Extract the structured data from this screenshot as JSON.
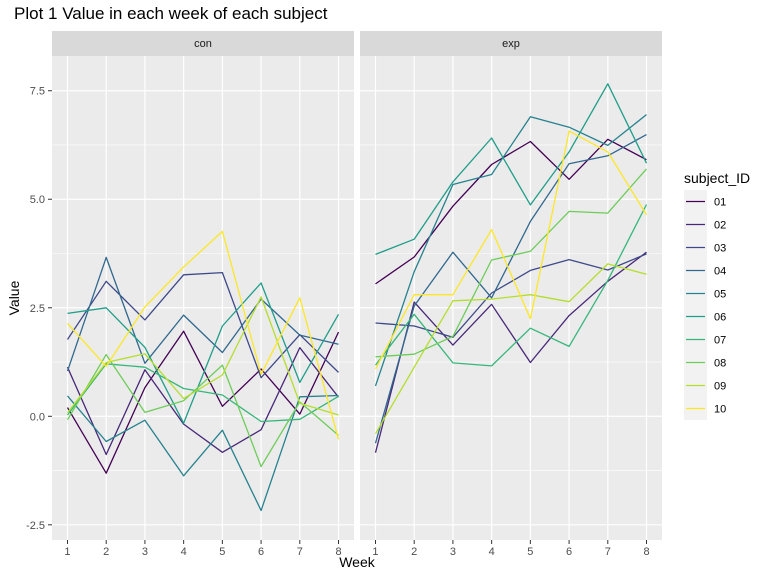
{
  "chart_data": {
    "type": "line",
    "title": "Plot 1 Value in each week of each subject",
    "xlabel": "Week",
    "ylabel": "Value",
    "x": [
      1,
      2,
      3,
      4,
      5,
      6,
      7,
      8
    ],
    "x_tick_labels": [
      "1",
      "2",
      "3",
      "4",
      "5",
      "6",
      "7",
      "8"
    ],
    "y_ticks": [
      -2.5,
      0.0,
      2.5,
      5.0,
      7.5
    ],
    "y_tick_labels": [
      "-2.5",
      "0.0",
      "2.5",
      "5.0",
      "7.5"
    ],
    "ylim": [
      -2.85,
      8.3
    ],
    "xlim": [
      0.6,
      8.4
    ],
    "grid": true,
    "legend_placement": "right",
    "legend_title": "subject_ID",
    "series_colors": {
      "01": "#440154",
      "02": "#482878",
      "03": "#3e4989",
      "04": "#31688e",
      "05": "#26828e",
      "06": "#1f9e89",
      "07": "#35b779",
      "08": "#6dcd59",
      "09": "#b4de2c",
      "10": "#fde725"
    },
    "panels": [
      {
        "label": "con",
        "series": [
          {
            "name": "01",
            "values": [
              0.2,
              -1.31,
              0.66,
              1.96,
              0.23,
              1.09,
              0.05,
              1.94
            ]
          },
          {
            "name": "02",
            "values": [
              1.13,
              -0.88,
              1.07,
              -0.18,
              -0.83,
              -0.31,
              1.58,
              0.44
            ]
          },
          {
            "name": "03",
            "values": [
              1.77,
              3.11,
              2.22,
              3.26,
              3.31,
              0.89,
              1.88,
              1.01
            ]
          },
          {
            "name": "04",
            "values": [
              1.04,
              3.66,
              1.22,
              2.33,
              1.47,
              2.7,
              1.87,
              1.66
            ]
          },
          {
            "name": "05",
            "values": [
              0.47,
              -0.58,
              -0.09,
              -1.37,
              -0.32,
              -2.17,
              0.45,
              0.48
            ]
          },
          {
            "name": "06",
            "values": [
              2.37,
              2.5,
              1.59,
              -0.16,
              2.08,
              3.07,
              0.78,
              2.35
            ]
          },
          {
            "name": "07",
            "values": [
              0.03,
              1.21,
              1.13,
              0.64,
              0.49,
              -0.12,
              -0.07,
              0.46
            ]
          },
          {
            "name": "08",
            "values": [
              -0.08,
              1.42,
              0.09,
              0.36,
              1.18,
              -1.16,
              0.33,
              -0.44
            ]
          },
          {
            "name": "09",
            "values": [
              0.08,
              1.24,
              1.44,
              0.41,
              0.95,
              2.75,
              0.3,
              0.03
            ]
          },
          {
            "name": "10",
            "values": [
              2.14,
              1.15,
              2.52,
              3.44,
              4.26,
              0.97,
              2.73,
              -0.53
            ]
          }
        ]
      },
      {
        "label": "exp",
        "series": [
          {
            "name": "01",
            "values": [
              3.05,
              3.67,
              4.84,
              5.8,
              6.33,
              5.46,
              6.38,
              5.91
            ]
          },
          {
            "name": "02",
            "values": [
              -0.84,
              2.63,
              1.64,
              2.58,
              1.24,
              2.32,
              3.11,
              3.78
            ]
          },
          {
            "name": "03",
            "values": [
              2.15,
              2.08,
              1.82,
              2.84,
              3.36,
              3.61,
              3.37,
              3.74
            ]
          },
          {
            "name": "04",
            "values": [
              -0.62,
              2.54,
              3.78,
              2.73,
              4.49,
              5.82,
              6.0,
              6.49
            ]
          },
          {
            "name": "05",
            "values": [
              0.7,
              3.33,
              5.34,
              5.57,
              6.9,
              6.66,
              6.24,
              6.95
            ]
          },
          {
            "name": "06",
            "values": [
              3.73,
              4.08,
              5.4,
              6.41,
              4.87,
              6.09,
              7.66,
              5.83
            ]
          },
          {
            "name": "07",
            "values": [
              1.18,
              2.35,
              1.23,
              1.16,
              2.03,
              1.61,
              3.13,
              4.88
            ]
          },
          {
            "name": "08",
            "values": [
              1.37,
              1.43,
              1.84,
              3.6,
              3.8,
              4.72,
              4.68,
              5.7
            ]
          },
          {
            "name": "09",
            "values": [
              -0.4,
              1.13,
              2.66,
              2.7,
              2.8,
              2.64,
              3.51,
              3.27
            ]
          },
          {
            "name": "10",
            "values": [
              1.09,
              2.8,
              2.8,
              4.3,
              2.25,
              6.57,
              6.09,
              4.64
            ]
          }
        ]
      }
    ]
  }
}
